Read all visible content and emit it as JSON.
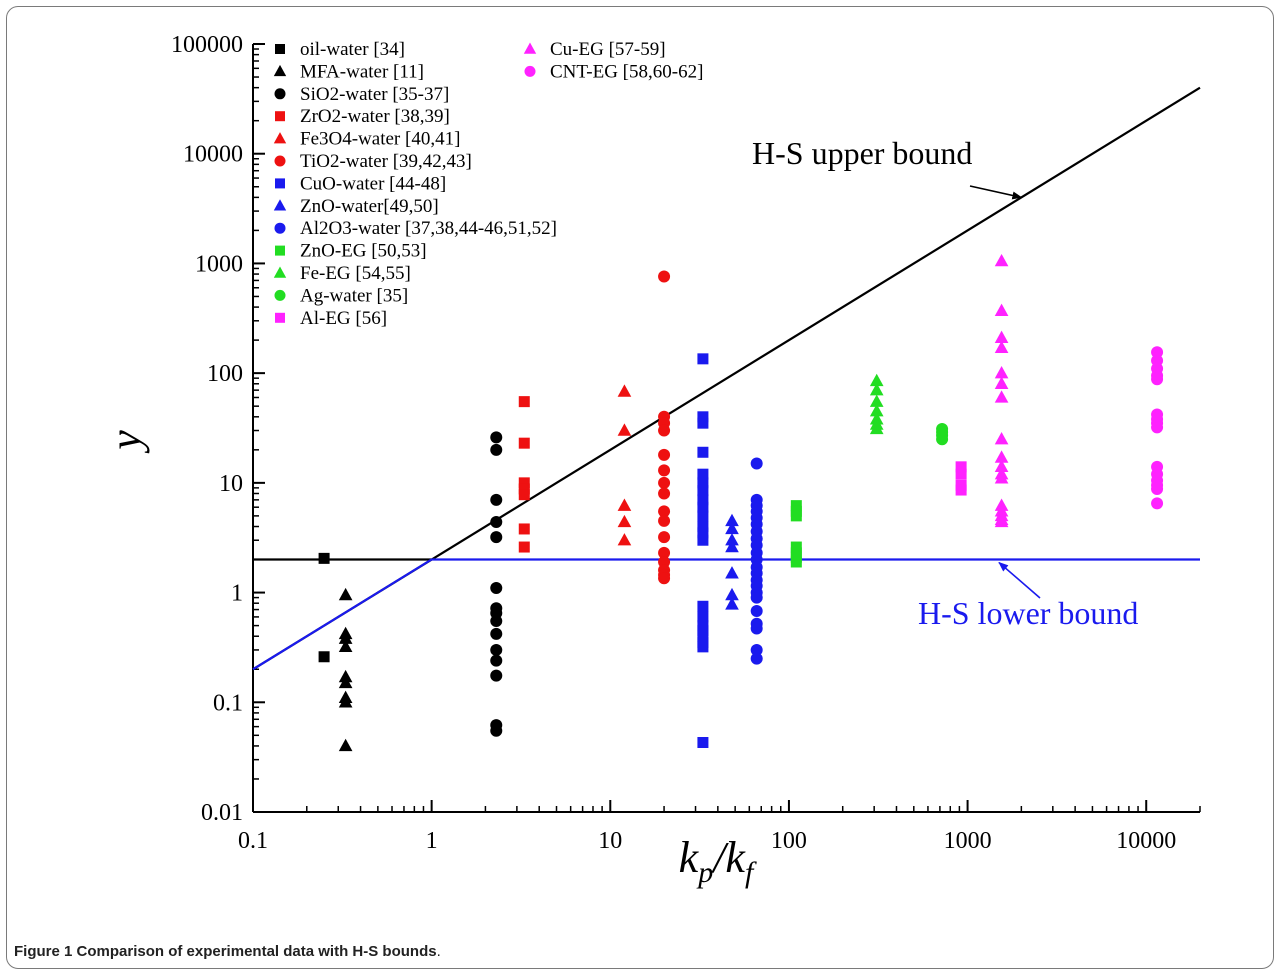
{
  "caption": {
    "label": "Figure 1",
    "text": "Comparison of experimental data with H-S bounds",
    "end": "."
  },
  "colors": {
    "black": "#000000",
    "red": "#ee1111",
    "blue": "#1a1aee",
    "green": "#22dd22",
    "magenta": "#ff22ff"
  },
  "chart_data": {
    "type": "scatter",
    "xlabel": "k_p/k_f",
    "ylabel": "y",
    "xscale": "log",
    "yscale": "log",
    "xlim": [
      0.1,
      20000
    ],
    "ylim": [
      0.01,
      100000
    ],
    "grid": false,
    "legend_placement": "top-left",
    "x_ticks": [
      0.1,
      1,
      10,
      100,
      1000,
      10000
    ],
    "x_tick_labels": [
      "0.1",
      "1",
      "10",
      "100",
      "1000",
      "10000"
    ],
    "y_ticks": [
      0.01,
      0.1,
      1,
      10,
      100,
      1000,
      10000,
      100000
    ],
    "y_tick_labels": [
      "0.01",
      "0.1",
      "1",
      "10",
      "100",
      "1000",
      "10000",
      "100000"
    ],
    "lines": [
      {
        "name": "H-S upper bound",
        "color": "#000000",
        "points": [
          [
            0.1,
            0.2
          ],
          [
            20000,
            40000
          ]
        ]
      },
      {
        "name": "H-S lower bound (black segment)",
        "color": "#000000",
        "points": [
          [
            0.1,
            2
          ],
          [
            1,
            2
          ]
        ]
      },
      {
        "name": "H-S lower bound",
        "color": "#1a1aee",
        "points": [
          [
            0.1,
            0.2
          ],
          [
            1,
            2
          ],
          [
            20000,
            2
          ]
        ]
      }
    ],
    "annotations": [
      {
        "text": "H-S upper bound",
        "arrow_to": [
          2000,
          4000
        ]
      },
      {
        "text": "H-S lower bound",
        "arrow_to": [
          1500,
          2
        ]
      }
    ],
    "series": [
      {
        "name": "oil-water [34]",
        "marker": "square",
        "color": "#000000",
        "points": [
          [
            0.25,
            2.05
          ],
          [
            0.25,
            0.26
          ]
        ]
      },
      {
        "name": "MFA-water [11]",
        "marker": "triangle",
        "color": "#000000",
        "points": [
          [
            0.33,
            0.95
          ],
          [
            0.33,
            0.42
          ],
          [
            0.33,
            0.38
          ],
          [
            0.33,
            0.32
          ],
          [
            0.33,
            0.17
          ],
          [
            0.33,
            0.15
          ],
          [
            0.33,
            0.11
          ],
          [
            0.33,
            0.1
          ],
          [
            0.33,
            0.04
          ]
        ]
      },
      {
        "name": "SiO2-water [35-37]",
        "marker": "circle",
        "color": "#000000",
        "points": [
          [
            2.3,
            26
          ],
          [
            2.3,
            20
          ],
          [
            2.3,
            7
          ],
          [
            2.3,
            4.4
          ],
          [
            2.3,
            3.2
          ],
          [
            2.3,
            1.1
          ],
          [
            2.3,
            0.72
          ],
          [
            2.3,
            0.65
          ],
          [
            2.3,
            0.55
          ],
          [
            2.3,
            0.42
          ],
          [
            2.3,
            0.3
          ],
          [
            2.3,
            0.24
          ],
          [
            2.3,
            0.175
          ],
          [
            2.3,
            0.062
          ],
          [
            2.3,
            0.055
          ]
        ]
      },
      {
        "name": "ZrO2-water [38,39]",
        "marker": "square",
        "color": "#ee1111",
        "points": [
          [
            3.3,
            55
          ],
          [
            3.3,
            23
          ],
          [
            3.3,
            10
          ],
          [
            3.3,
            8.8
          ],
          [
            3.3,
            7.8
          ],
          [
            3.3,
            3.8
          ],
          [
            3.3,
            2.6
          ]
        ]
      },
      {
        "name": "Fe3O4-water [40,41]",
        "marker": "triangle",
        "color": "#ee1111",
        "points": [
          [
            12,
            68
          ],
          [
            12,
            30
          ],
          [
            12,
            6.2
          ],
          [
            12,
            4.4
          ],
          [
            12,
            3
          ]
        ]
      },
      {
        "name": "TiO2-water [39,42,43]",
        "marker": "circle",
        "color": "#ee1111",
        "points": [
          [
            20,
            760
          ],
          [
            20,
            40
          ],
          [
            20,
            35
          ],
          [
            20,
            30
          ],
          [
            20,
            18
          ],
          [
            20,
            13
          ],
          [
            20,
            10
          ],
          [
            20,
            8
          ],
          [
            20,
            5.5
          ],
          [
            20,
            4.5
          ],
          [
            20,
            3.2
          ],
          [
            20,
            2.3
          ],
          [
            20,
            1.9
          ],
          [
            20,
            1.6
          ],
          [
            20,
            1.45
          ],
          [
            20,
            1.35
          ]
        ]
      },
      {
        "name": "CuO-water [44-48]",
        "marker": "square",
        "color": "#1a1aee",
        "points": [
          [
            33,
            135
          ],
          [
            33,
            40
          ],
          [
            33,
            35
          ],
          [
            33,
            19
          ],
          [
            33,
            12
          ],
          [
            33,
            10
          ],
          [
            33,
            8.5
          ],
          [
            33,
            7
          ],
          [
            33,
            6
          ],
          [
            33,
            5
          ],
          [
            33,
            4
          ],
          [
            33,
            3.5
          ],
          [
            33,
            3
          ],
          [
            33,
            0.75
          ],
          [
            33,
            0.6
          ],
          [
            33,
            0.5
          ],
          [
            33,
            0.45
          ],
          [
            33,
            0.4
          ],
          [
            33,
            0.35
          ],
          [
            33,
            0.32
          ],
          [
            33,
            0.043
          ]
        ]
      },
      {
        "name": "ZnO-water[49,50]",
        "marker": "triangle",
        "color": "#1a1aee",
        "points": [
          [
            48,
            4.5
          ],
          [
            48,
            3.8
          ],
          [
            48,
            3
          ],
          [
            48,
            2.6
          ],
          [
            48,
            1.5
          ],
          [
            48,
            0.95
          ],
          [
            48,
            0.78
          ]
        ]
      },
      {
        "name": "Al2O3-water [37,38,44-46,51,52]",
        "marker": "circle",
        "color": "#1a1aee",
        "points": [
          [
            66,
            15
          ],
          [
            66,
            7
          ],
          [
            66,
            6.2
          ],
          [
            66,
            5.5
          ],
          [
            66,
            4.8
          ],
          [
            66,
            4.2
          ],
          [
            66,
            3.6
          ],
          [
            66,
            3.1
          ],
          [
            66,
            2.7
          ],
          [
            66,
            2.3
          ],
          [
            66,
            2
          ],
          [
            66,
            1.7
          ],
          [
            66,
            1.5
          ],
          [
            66,
            1.3
          ],
          [
            66,
            1.15
          ],
          [
            66,
            1
          ],
          [
            66,
            0.9
          ],
          [
            66,
            0.68
          ],
          [
            66,
            0.52
          ],
          [
            66,
            0.47
          ],
          [
            66,
            0.3
          ],
          [
            66,
            0.25
          ]
        ]
      },
      {
        "name": "ZnO-EG [50,53]",
        "marker": "square",
        "color": "#22dd22",
        "points": [
          [
            110,
            6.2
          ],
          [
            110,
            5.5
          ],
          [
            110,
            5
          ],
          [
            110,
            2.6
          ],
          [
            110,
            2.3
          ],
          [
            110,
            2.1
          ],
          [
            110,
            1.9
          ]
        ]
      },
      {
        "name": "Fe-EG [54,55]",
        "marker": "triangle",
        "color": "#22dd22",
        "points": [
          [
            310,
            85
          ],
          [
            310,
            70
          ],
          [
            310,
            55
          ],
          [
            310,
            45
          ],
          [
            310,
            38
          ],
          [
            310,
            34
          ],
          [
            310,
            31
          ]
        ]
      },
      {
        "name": "Ag-water [35]",
        "marker": "circle",
        "color": "#22dd22",
        "points": [
          [
            720,
            31
          ],
          [
            720,
            29
          ],
          [
            720,
            27
          ],
          [
            720,
            25
          ]
        ]
      },
      {
        "name": "Al-EG [56]",
        "marker": "square",
        "color": "#ff22ff",
        "points": [
          [
            920,
            14
          ],
          [
            920,
            12
          ],
          [
            920,
            9.5
          ],
          [
            920,
            8.6
          ]
        ]
      },
      {
        "name": "Cu-EG [57-59]",
        "marker": "triangle",
        "color": "#ff22ff",
        "points": [
          [
            1550,
            1050
          ],
          [
            1550,
            370
          ],
          [
            1550,
            210
          ],
          [
            1550,
            170
          ],
          [
            1550,
            100
          ],
          [
            1550,
            80
          ],
          [
            1550,
            60
          ],
          [
            1550,
            25
          ],
          [
            1550,
            17
          ],
          [
            1550,
            14
          ],
          [
            1550,
            12
          ],
          [
            1550,
            11
          ],
          [
            1550,
            6.2
          ],
          [
            1550,
            5.5
          ],
          [
            1550,
            5
          ],
          [
            1550,
            4.6
          ],
          [
            1550,
            4.4
          ]
        ]
      },
      {
        "name": "CNT-EG [58,60-62]",
        "marker": "circle",
        "color": "#ff22ff",
        "points": [
          [
            11500,
            155
          ],
          [
            11500,
            130
          ],
          [
            11500,
            110
          ],
          [
            11500,
            95
          ],
          [
            11500,
            88
          ],
          [
            11500,
            42
          ],
          [
            11500,
            38
          ],
          [
            11500,
            35
          ],
          [
            11500,
            32
          ],
          [
            11500,
            14
          ],
          [
            11500,
            12
          ],
          [
            11500,
            10.5
          ],
          [
            11500,
            9.5
          ],
          [
            11500,
            8.8
          ],
          [
            11500,
            6.5
          ]
        ]
      }
    ]
  }
}
